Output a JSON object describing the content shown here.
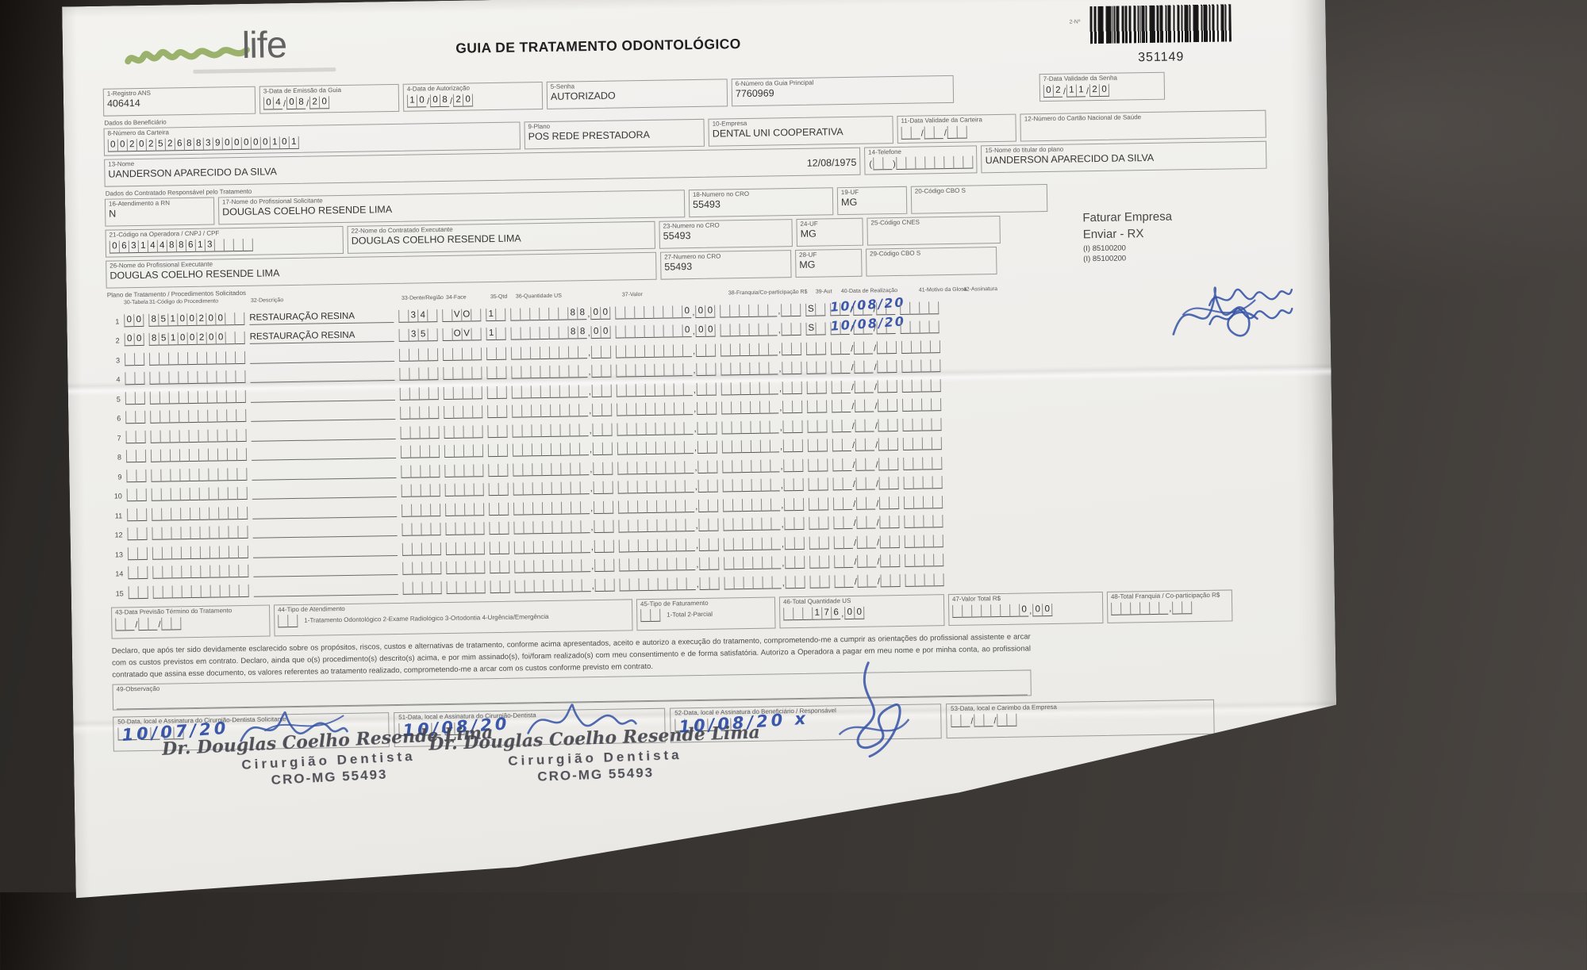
{
  "header": {
    "logo_text": "life",
    "title": "GUIA DE TRATAMENTO ODONTOLÓGICO",
    "barcode_label": "2-Nº",
    "barcode_number": "351149"
  },
  "sections": {
    "beneficiario": "Dados do Beneficiário",
    "contratado": "Dados do Contratado Responsável pelo Tratamento",
    "plano": "Plano de Tratamento / Procedimentos Solicitados"
  },
  "fields": {
    "f1": {
      "label": "1-Registro ANS",
      "value": "406414"
    },
    "f3": {
      "label": "3-Data de Emissão da Guia",
      "value": "04/08/20"
    },
    "f4": {
      "label": "4-Data de Autorização",
      "value": "10/08/20"
    },
    "f5": {
      "label": "5-Senha",
      "value": "AUTORIZADO"
    },
    "f6": {
      "label": "6-Número da Guia Principal",
      "value": "7760969"
    },
    "f7": {
      "label": "7-Data Validade da Senha",
      "value": "02/11/20"
    },
    "f8": {
      "label": "8-Número da Carteira",
      "value": "00202526883900000101"
    },
    "f9": {
      "label": "9-Plano",
      "value": "POS REDE PRESTADORA"
    },
    "f10": {
      "label": "10-Empresa",
      "value": "DENTAL UNI  COOPERATIVA"
    },
    "f11": {
      "label": "11-Data Validade da Carteira",
      "value": "__/__/__"
    },
    "f12": {
      "label": "12-Número do Cartão Nacional de Saúde",
      "value": ""
    },
    "f13": {
      "label": "13-Nome",
      "value": "UANDERSON APARECIDO DA SILVA",
      "extra": "12/08/1975"
    },
    "f14": {
      "label": "14-Telefone",
      "value": "(__)________"
    },
    "f15": {
      "label": "15-Nome do titular do plano",
      "value": "UANDERSON APARECIDO DA SILVA"
    },
    "f16": {
      "label": "16-Atendimento a RN",
      "value": "N"
    },
    "f17": {
      "label": "17-Nome do Profissional Solicitante",
      "value": "DOUGLAS COELHO RESENDE LIMA"
    },
    "f18": {
      "label": "18-Numero no CRO",
      "value": "55493"
    },
    "f19": {
      "label": "19-UF",
      "value": "MG"
    },
    "f20": {
      "label": "20-Código CBO S",
      "value": ""
    },
    "f21": {
      "label": "21-Código na Operadora / CNPJ / CPF",
      "value": "06314488613____"
    },
    "f22": {
      "label": "22-Nome do Contratado Executante",
      "value": "DOUGLAS COELHO RESENDE LIMA"
    },
    "f23": {
      "label": "23-Numero no CRO",
      "value": "55493"
    },
    "f24": {
      "label": "24-UF",
      "value": "MG"
    },
    "f25": {
      "label": "25-Código CNES",
      "value": ""
    },
    "f26": {
      "label": "26-Nome do Profissional Executante",
      "value": "DOUGLAS COELHO RESENDE LIMA"
    },
    "f27": {
      "label": "27-Numero no CRO",
      "value": "55493"
    },
    "f28": {
      "label": "28-UF",
      "value": "MG"
    },
    "f29": {
      "label": "29-Código CBO S",
      "value": ""
    },
    "f43": {
      "label": "43-Data Previsão Término do Tratamento",
      "value": "__/__/__"
    },
    "f44": {
      "label": "44-Tipo de Atendimento",
      "value": "__",
      "legend": "1-Tratamento Odontológico  2-Exame Radiológico  3-Ortodontia  4-Urgência/Emergência"
    },
    "f45": {
      "label": "45-Tipo de Faturamento",
      "value": "__",
      "legend": "1-Total  2-Parcial"
    },
    "f46": {
      "label": "46-Total Quantidade US",
      "value": "___176,00"
    },
    "f47": {
      "label": "47-Valor Total R$",
      "value": "_______0,00"
    },
    "f48": {
      "label": "48-Total Franquia / Co-participação R$",
      "value": "______,__"
    },
    "f49": {
      "label": "49-Observação"
    },
    "f50": {
      "label": "50-Data, local e Assinatura do Cirurgião-Dentista Solicitante",
      "value": "__/__/__",
      "hand": "10/07/20"
    },
    "f51": {
      "label": "51-Data, local e Assinatura do Cirurgião-Dentista",
      "value": "__/__/__",
      "hand": "10/08/20"
    },
    "f52": {
      "label": "52-Data, local e Assinatura do Beneficiário / Responsável",
      "value": "__/__/__",
      "hand": "10/08/20 x"
    },
    "f53": {
      "label": "53-Data, local e Carimbo da Empresa",
      "value": "__/__/__"
    }
  },
  "notes": {
    "faturar": "Faturar Empresa",
    "enviar": "Enviar - RX",
    "code1": "(I) 85100200",
    "code2": "(I) 85100200"
  },
  "table": {
    "headers": [
      "30-Tabela",
      "31-Código do Procedimento",
      "32-Descrição",
      "33-Dente/Região",
      "34-Face",
      "35-Qtd",
      "36-Quantidade US",
      "37-Valor",
      "38-Franquia/Co-participação R$",
      "39-Aut",
      "40-Data de Realização",
      "41-Motivo da Glosa",
      "42-Assinatura"
    ],
    "rows": [
      {
        "n": "1",
        "tabela": "00",
        "codigo": "85100200__",
        "descricao": "RESTAURAÇÃO RESINA",
        "dente": "_34_",
        "face": "_VO_",
        "qtd": "1_",
        "us": "______88,00",
        "valor": "_______0,00",
        "aut": "S_",
        "data": "__/__/__",
        "data_hand": "10/08/20",
        "signed": true
      },
      {
        "n": "2",
        "tabela": "00",
        "codigo": "85100200__",
        "descricao": "RESTAURAÇÃO RESINA",
        "dente": "_35_",
        "face": "_OV_",
        "qtd": "1_",
        "us": "______88,00",
        "valor": "_______0,00",
        "aut": "S_",
        "data": "__/__/__",
        "data_hand": "10/08/20",
        "signed": true
      },
      {
        "n": "3"
      },
      {
        "n": "4"
      },
      {
        "n": "5"
      },
      {
        "n": "6"
      },
      {
        "n": "7"
      },
      {
        "n": "8"
      },
      {
        "n": "9"
      },
      {
        "n": "10"
      },
      {
        "n": "11"
      },
      {
        "n": "12"
      },
      {
        "n": "13"
      },
      {
        "n": "14"
      },
      {
        "n": "15"
      }
    ]
  },
  "declaration": "Declaro, que após ter sido devidamente esclarecido sobre os propósitos, riscos, custos e alternativas de tratamento, conforme acima apresentados, aceito e autorizo a execução do tratamento, comprometendo-me a cumprir as orientações do profissional assistente e arcar com os custos previstos em contrato. Declaro, ainda que o(s) procedimento(s) descrito(s) acima, e por mim assinado(s), foi/foram realizado(s) com meu consentimento e de forma satisfatória. Autorizo a Operadora a pagar em meu nome e por minha conta, ao profissional contratado que assina esse documento, os valores referentes ao tratamento realizado, comprometendo-me a arcar com os custos conforme previsto em contrato.",
  "stamp": {
    "line1": "Dr. Douglas Coelho Resende Lima",
    "line2": "Cirurgião Dentista",
    "line3": "CRO-MG 55493"
  }
}
